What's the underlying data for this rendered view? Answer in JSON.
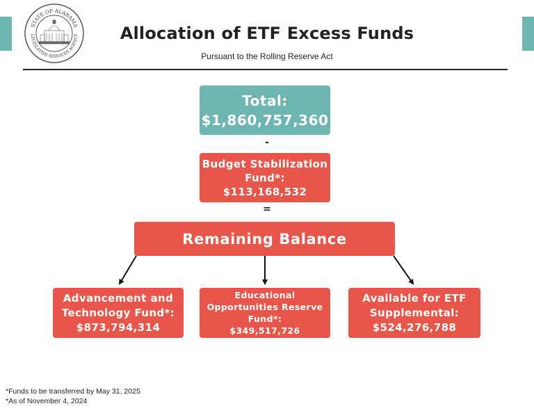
{
  "header": {
    "title": "Allocation of ETF Excess Funds",
    "subtitle": "Pursuant to the Rolling Reserve Act",
    "seal_text_top": "STATE OF ALABAMA",
    "seal_text_bottom": "LEGISLATIVE SERVICES AGENCY"
  },
  "flow": {
    "total": {
      "label": "Total:",
      "value": "$1,860,757,360"
    },
    "minus_symbol": "-",
    "budget_stabilization": {
      "label_line1": "Budget Stabilization",
      "label_line2": "Fund*:",
      "value": "$113,168,532"
    },
    "equals_symbol": "=",
    "remaining": {
      "label": "Remaining Balance"
    },
    "advancement": {
      "label_line1": "Advancement and",
      "label_line2": "Technology Fund*:",
      "value": "$873,794,314"
    },
    "educational": {
      "label_line1": "Educational",
      "label_line2": "Opportunities Reserve",
      "label_line3": "Fund*:",
      "value": "$349,517,726"
    },
    "supplemental": {
      "label_line1": "Available for ETF",
      "label_line2": "Supplemental:",
      "value": "$524,276,788"
    }
  },
  "footnotes": {
    "note1": "*Funds to be transferred by May 31, 2025",
    "note2": "*As of November 4, 2024"
  },
  "colors": {
    "teal": "#6cb5b0",
    "red": "#e8554b",
    "text": "#222222"
  }
}
